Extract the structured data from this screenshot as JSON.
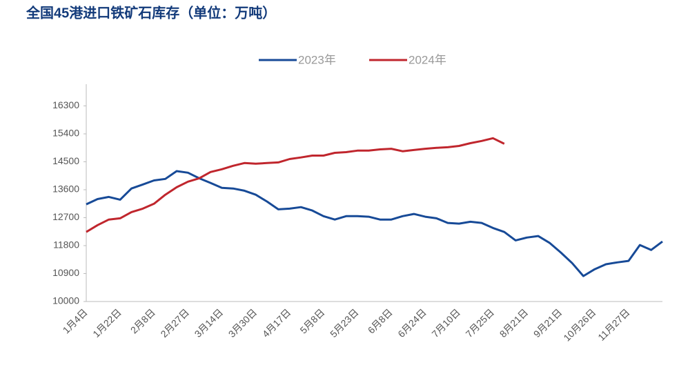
{
  "chart_data": {
    "type": "line",
    "title": "全国45港进口铁矿石库存（单位：万吨）",
    "categories": [
      "1月4日",
      null,
      null,
      "1月22日",
      null,
      null,
      "2月8日",
      null,
      null,
      "2月27日",
      null,
      null,
      "3月14日",
      null,
      null,
      "3月30日",
      null,
      null,
      "4月17日",
      null,
      null,
      "5月8日",
      null,
      null,
      "5月23日",
      null,
      null,
      "6月8日",
      null,
      null,
      "6月24日",
      null,
      null,
      "7月10日",
      null,
      null,
      "7月25日",
      null,
      null,
      "8月21日",
      null,
      null,
      "9月21日",
      null,
      null,
      "10月26日",
      null,
      null,
      "11月27日",
      null,
      null,
      null
    ],
    "series": [
      {
        "name": "2023年",
        "color": "#174a97",
        "values": [
          13130,
          13300,
          13370,
          13280,
          13640,
          13770,
          13900,
          13950,
          14200,
          14150,
          13970,
          13820,
          13660,
          13640,
          13570,
          13440,
          13220,
          12970,
          12990,
          13040,
          12930,
          12750,
          12640,
          12750,
          12750,
          12730,
          12640,
          12640,
          12750,
          12820,
          12730,
          12680,
          12530,
          12510,
          12570,
          12530,
          12370,
          12240,
          11970,
          12060,
          12110,
          11890,
          11580,
          11240,
          10820,
          11040,
          11200,
          11260,
          11310,
          11820,
          11660,
          11930
        ]
      },
      {
        "name": "2024年",
        "color": "#c0262d",
        "values": [
          12240,
          12460,
          12640,
          12680,
          12880,
          12990,
          13150,
          13440,
          13680,
          13860,
          13970,
          14170,
          14260,
          14370,
          14460,
          14440,
          14460,
          14480,
          14590,
          14640,
          14700,
          14700,
          14790,
          14810,
          14860,
          14860,
          14900,
          14920,
          14840,
          14880,
          14920,
          14950,
          14970,
          15010,
          15100,
          15170,
          15260,
          15080,
          null,
          null,
          null,
          null,
          null,
          null,
          null,
          null,
          null,
          null,
          null,
          null,
          null,
          null
        ]
      }
    ],
    "ylim": [
      10000,
      17000
    ],
    "yticks": [
      10000,
      10900,
      11800,
      12700,
      13600,
      14500,
      15400,
      16300
    ],
    "grid": false
  }
}
